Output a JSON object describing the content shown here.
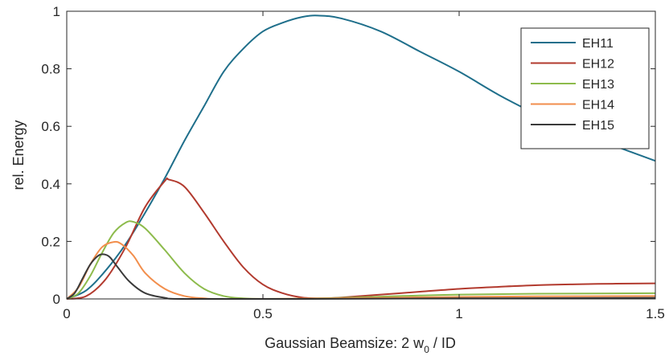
{
  "chart_data": {
    "type": "line",
    "title": "",
    "xlabel": {
      "main": "Gaussian Beamsize: 2 w",
      "sub": "0",
      "tail": " / ID"
    },
    "ylabel": "rel. Energy",
    "xlim": [
      0,
      1.5
    ],
    "ylim": [
      0,
      1
    ],
    "xticks": [
      0,
      0.5,
      1,
      1.5
    ],
    "xtick_labels": [
      "0",
      "0.5",
      "1",
      "1.5"
    ],
    "yticks": [
      0,
      0.2,
      0.4,
      0.6,
      0.8,
      1
    ],
    "ytick_labels": [
      "0",
      "0.2",
      "0.4",
      "0.6",
      "0.8",
      "1"
    ],
    "grid": false,
    "legend_position": "top-right",
    "series": [
      {
        "name": "EH11",
        "color": "#1f6f8b",
        "points": [
          [
            0,
            0
          ],
          [
            0.05,
            0.03
          ],
          [
            0.1,
            0.1
          ],
          [
            0.15,
            0.19
          ],
          [
            0.2,
            0.3
          ],
          [
            0.25,
            0.42
          ],
          [
            0.3,
            0.55
          ],
          [
            0.35,
            0.67
          ],
          [
            0.4,
            0.79
          ],
          [
            0.45,
            0.87
          ],
          [
            0.5,
            0.93
          ],
          [
            0.55,
            0.96
          ],
          [
            0.6,
            0.98
          ],
          [
            0.64,
            0.985
          ],
          [
            0.7,
            0.975
          ],
          [
            0.8,
            0.93
          ],
          [
            0.9,
            0.86
          ],
          [
            1.0,
            0.79
          ],
          [
            1.1,
            0.71
          ],
          [
            1.2,
            0.64
          ],
          [
            1.3,
            0.58
          ],
          [
            1.4,
            0.53
          ],
          [
            1.5,
            0.48
          ]
        ]
      },
      {
        "name": "EH12",
        "color": "#b23a2e",
        "points": [
          [
            0,
            0
          ],
          [
            0.05,
            0.01
          ],
          [
            0.1,
            0.07
          ],
          [
            0.15,
            0.18
          ],
          [
            0.2,
            0.32
          ],
          [
            0.25,
            0.41
          ],
          [
            0.26,
            0.415
          ],
          [
            0.3,
            0.39
          ],
          [
            0.35,
            0.3
          ],
          [
            0.4,
            0.2
          ],
          [
            0.45,
            0.11
          ],
          [
            0.5,
            0.05
          ],
          [
            0.55,
            0.02
          ],
          [
            0.6,
            0.005
          ],
          [
            0.65,
            0.002
          ],
          [
            0.7,
            0.005
          ],
          [
            0.8,
            0.015
          ],
          [
            0.9,
            0.025
          ],
          [
            1.0,
            0.035
          ],
          [
            1.1,
            0.042
          ],
          [
            1.2,
            0.048
          ],
          [
            1.3,
            0.051
          ],
          [
            1.4,
            0.053
          ],
          [
            1.5,
            0.054
          ]
        ]
      },
      {
        "name": "EH13",
        "color": "#8dbb4c",
        "points": [
          [
            0,
            0
          ],
          [
            0.03,
            0.02
          ],
          [
            0.06,
            0.08
          ],
          [
            0.09,
            0.16
          ],
          [
            0.12,
            0.23
          ],
          [
            0.15,
            0.265
          ],
          [
            0.17,
            0.268
          ],
          [
            0.2,
            0.245
          ],
          [
            0.25,
            0.17
          ],
          [
            0.3,
            0.09
          ],
          [
            0.35,
            0.035
          ],
          [
            0.4,
            0.01
          ],
          [
            0.45,
            0.002
          ],
          [
            0.5,
            0
          ],
          [
            0.6,
            0.001
          ],
          [
            0.7,
            0.004
          ],
          [
            0.8,
            0.008
          ],
          [
            0.9,
            0.012
          ],
          [
            1.0,
            0.015
          ],
          [
            1.2,
            0.018
          ],
          [
            1.5,
            0.02
          ]
        ]
      },
      {
        "name": "EH14",
        "color": "#f28e4c",
        "points": [
          [
            0,
            0
          ],
          [
            0.03,
            0.04
          ],
          [
            0.06,
            0.12
          ],
          [
            0.09,
            0.18
          ],
          [
            0.12,
            0.198
          ],
          [
            0.14,
            0.19
          ],
          [
            0.17,
            0.15
          ],
          [
            0.2,
            0.09
          ],
          [
            0.25,
            0.035
          ],
          [
            0.3,
            0.01
          ],
          [
            0.35,
            0.002
          ],
          [
            0.4,
            0
          ],
          [
            0.6,
            0.001
          ],
          [
            0.8,
            0.004
          ],
          [
            1.0,
            0.007
          ],
          [
            1.2,
            0.009
          ],
          [
            1.5,
            0.01
          ]
        ]
      },
      {
        "name": "EH15",
        "color": "#3a3a3a",
        "points": [
          [
            0,
            0
          ],
          [
            0.02,
            0.02
          ],
          [
            0.04,
            0.07
          ],
          [
            0.06,
            0.12
          ],
          [
            0.08,
            0.15
          ],
          [
            0.095,
            0.155
          ],
          [
            0.11,
            0.145
          ],
          [
            0.13,
            0.11
          ],
          [
            0.16,
            0.06
          ],
          [
            0.2,
            0.02
          ],
          [
            0.25,
            0.004
          ],
          [
            0.3,
            0
          ],
          [
            0.6,
            0
          ],
          [
            1.0,
            0.002
          ],
          [
            1.5,
            0.004
          ]
        ]
      }
    ]
  }
}
